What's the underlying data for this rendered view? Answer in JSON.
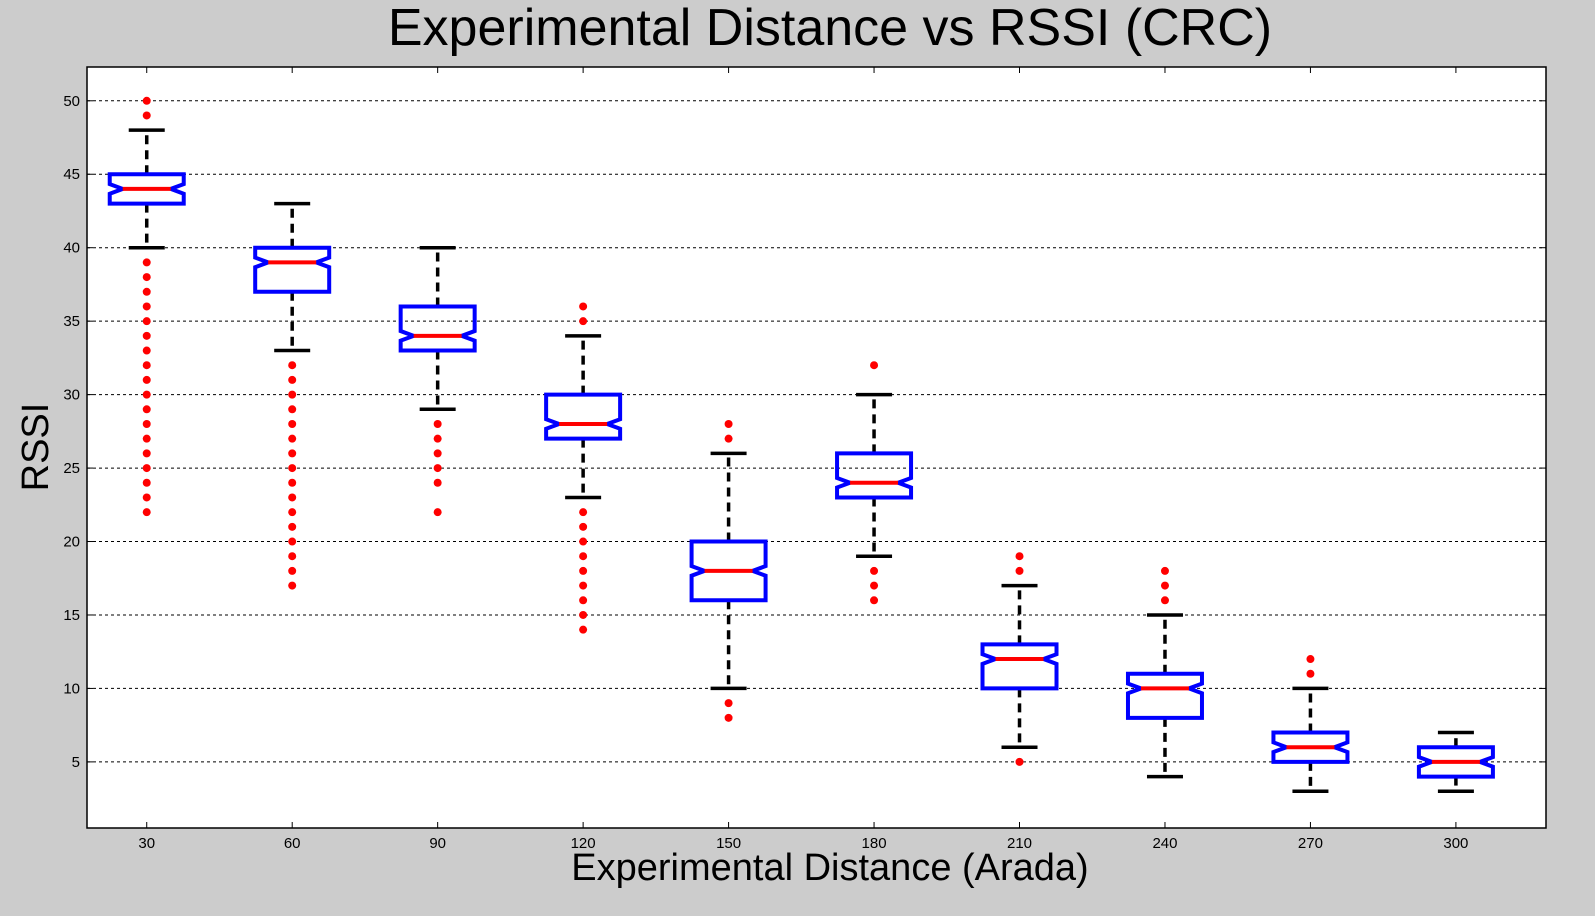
{
  "chart_data": {
    "type": "boxplot",
    "title": "Experimental Distance vs RSSI (CRC)",
    "xlabel": "Experimental Distance (Arada)",
    "ylabel": "RSSI",
    "ylim": [
      0.5,
      52.3
    ],
    "yticks": [
      5,
      10,
      15,
      20,
      25,
      30,
      35,
      40,
      45,
      50
    ],
    "grid": "horizontal-dashed",
    "colors": {
      "box": "#0000ff",
      "median": "#ff0000",
      "whisker": "#000000",
      "outlier": "#ff0000",
      "background": "#cccccc",
      "plot_area": "#ffffff"
    },
    "categories": [
      "30",
      "60",
      "90",
      "120",
      "150",
      "180",
      "210",
      "240",
      "270",
      "300"
    ],
    "boxes": [
      {
        "label": "30",
        "q1": 43,
        "median": 44,
        "q3": 45,
        "whisker_low": 40,
        "whisker_high": 48,
        "outliers": [
          22,
          23,
          24,
          25,
          26,
          27,
          28,
          29,
          30,
          31,
          32,
          33,
          34,
          35,
          36,
          37,
          38,
          39,
          49,
          50
        ]
      },
      {
        "label": "60",
        "q1": 37,
        "median": 39,
        "q3": 40,
        "whisker_low": 33,
        "whisker_high": 43,
        "outliers": [
          17,
          18,
          19,
          20,
          21,
          22,
          23,
          24,
          25,
          26,
          27,
          28,
          29,
          30,
          31,
          32
        ]
      },
      {
        "label": "90",
        "q1": 33,
        "median": 34,
        "q3": 36,
        "whisker_low": 29,
        "whisker_high": 40,
        "outliers": [
          22,
          24,
          25,
          26,
          27,
          28
        ]
      },
      {
        "label": "120",
        "q1": 27,
        "median": 28,
        "q3": 30,
        "whisker_low": 23,
        "whisker_high": 34,
        "outliers": [
          14,
          15,
          16,
          17,
          18,
          19,
          20,
          21,
          22,
          35,
          36
        ]
      },
      {
        "label": "150",
        "q1": 16,
        "median": 18,
        "q3": 20,
        "whisker_low": 10,
        "whisker_high": 26,
        "outliers": [
          8,
          9,
          27,
          28
        ]
      },
      {
        "label": "180",
        "q1": 23,
        "median": 24,
        "q3": 26,
        "whisker_low": 19,
        "whisker_high": 30,
        "outliers": [
          16,
          17,
          18,
          32
        ]
      },
      {
        "label": "210",
        "q1": 10,
        "median": 12,
        "q3": 13,
        "whisker_low": 6,
        "whisker_high": 17,
        "outliers": [
          5,
          18,
          19
        ]
      },
      {
        "label": "240",
        "q1": 8,
        "median": 10,
        "q3": 11,
        "whisker_low": 4,
        "whisker_high": 15,
        "outliers": [
          16,
          17,
          18
        ]
      },
      {
        "label": "270",
        "q1": 5,
        "median": 6,
        "q3": 7,
        "whisker_low": 3,
        "whisker_high": 10,
        "outliers": [
          11,
          12
        ]
      },
      {
        "label": "300",
        "q1": 4,
        "median": 5,
        "q3": 6,
        "whisker_low": 3,
        "whisker_high": 7,
        "outliers": []
      }
    ]
  }
}
